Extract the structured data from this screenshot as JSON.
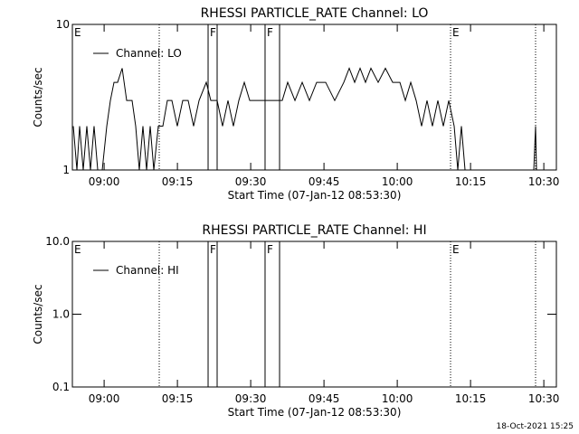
{
  "chart_data": [
    {
      "type": "line",
      "title": "RHESSI PARTICLE_RATE Channel: LO",
      "xlabel": "Start Time (07-Jan-12 08:53:30)",
      "ylabel": "Counts/sec",
      "log_y": true,
      "legend": "upper left",
      "xlim": [
        533.5,
        632.57
      ],
      "xticks": [
        {
          "value": 540,
          "label": "09:00"
        },
        {
          "value": 555,
          "label": "09:15"
        },
        {
          "value": 570,
          "label": "09:30"
        },
        {
          "value": 585,
          "label": "09:45"
        },
        {
          "value": 600,
          "label": "10:00"
        },
        {
          "value": 615,
          "label": "10:15"
        },
        {
          "value": 630,
          "label": "10:30"
        }
      ],
      "ylim": [
        1,
        10
      ],
      "yticks": [
        1,
        10
      ],
      "vlines": [
        {
          "x": 551.28,
          "style": "dotted"
        },
        {
          "x": 561.28,
          "style": "solid"
        },
        {
          "x": 563.13,
          "style": "solid"
        },
        {
          "x": 572.94,
          "style": "solid"
        },
        {
          "x": 575.91,
          "style": "solid"
        },
        {
          "x": 610.91,
          "style": "dotted"
        },
        {
          "x": 628.31,
          "style": "dotted"
        }
      ],
      "annotations": [
        {
          "label": "E",
          "x": 533.5
        },
        {
          "label": "F",
          "x": 561.28
        },
        {
          "label": "F",
          "x": 572.94
        },
        {
          "label": "E",
          "x": 610.91
        }
      ],
      "series": [
        {
          "name": "Channel: LO",
          "color": "#000000",
          "x": [
            533.69,
            534.43,
            534.98,
            535.72,
            536.46,
            537.2,
            537.94,
            538.69,
            539.61,
            540.54,
            541.28,
            542.02,
            542.76,
            543.69,
            544.61,
            545.72,
            546.46,
            547.2,
            547.94,
            548.69,
            549.43,
            550.17,
            551.09,
            552.02,
            552.94,
            553.87,
            554.98,
            556.09,
            557.2,
            558.31,
            559.43,
            560.91,
            561.83,
            563.13,
            564.24,
            565.35,
            566.46,
            567.57,
            568.69,
            569.8,
            572.39,
            575.17,
            576.46,
            577.57,
            579.06,
            580.54,
            582.02,
            583.5,
            585.35,
            587.2,
            589.06,
            590.17,
            591.28,
            592.39,
            593.5,
            594.61,
            596.09,
            597.57,
            599.06,
            600.54,
            601.65,
            602.76,
            603.87,
            604.98,
            606.09,
            607.2,
            608.31,
            609.43,
            610.54,
            611.65,
            612.39,
            613.13,
            613.87,
            614.61,
            620,
            627.94,
            628.31,
            628.5
          ],
          "values": [
            2,
            1,
            2,
            1,
            2,
            1,
            2,
            1,
            1,
            2,
            3,
            4,
            4,
            5,
            3,
            3,
            2,
            1,
            2,
            1,
            2,
            1,
            2,
            2,
            3,
            3,
            2,
            3,
            3,
            2,
            3,
            4,
            3,
            3,
            2,
            3,
            2,
            3,
            4,
            3,
            3,
            3,
            3,
            4,
            3,
            4,
            3,
            4,
            4,
            3,
            4,
            5,
            4,
            5,
            4,
            5,
            4,
            5,
            4,
            4,
            3,
            4,
            3,
            2,
            3,
            2,
            3,
            2,
            3,
            2,
            1,
            2,
            1,
            1,
            null,
            1,
            2,
            1
          ]
        }
      ]
    },
    {
      "type": "line",
      "title": "RHESSI PARTICLE_RATE Channel: HI",
      "xlabel": "Start Time (07-Jan-12 08:53:30)",
      "ylabel": "Counts/sec",
      "log_y": true,
      "legend": "upper left",
      "xlim": [
        533.5,
        632.57
      ],
      "xticks": [
        {
          "value": 540,
          "label": "09:00"
        },
        {
          "value": 555,
          "label": "09:15"
        },
        {
          "value": 570,
          "label": "09:30"
        },
        {
          "value": 585,
          "label": "09:45"
        },
        {
          "value": 600,
          "label": "10:00"
        },
        {
          "value": 615,
          "label": "10:15"
        },
        {
          "value": 630,
          "label": "10:30"
        }
      ],
      "ylim": [
        0.1,
        10
      ],
      "yticks": [
        0.1,
        {
          "value": 1,
          "label": "1.0"
        },
        {
          "value": 10,
          "label": "10.0"
        }
      ],
      "vlines": [
        {
          "x": 551.28,
          "style": "dotted"
        },
        {
          "x": 561.28,
          "style": "solid"
        },
        {
          "x": 563.13,
          "style": "solid"
        },
        {
          "x": 572.94,
          "style": "solid"
        },
        {
          "x": 575.91,
          "style": "solid"
        },
        {
          "x": 610.91,
          "style": "dotted"
        },
        {
          "x": 628.31,
          "style": "dotted"
        }
      ],
      "annotations": [
        {
          "label": "E",
          "x": 533.5
        },
        {
          "label": "F",
          "x": 561.28
        },
        {
          "label": "F",
          "x": 572.94
        },
        {
          "label": "E",
          "x": 610.91
        }
      ],
      "series": [
        {
          "name": "Channel: HI",
          "color": "#000000",
          "x": [],
          "values": []
        }
      ]
    }
  ],
  "timestamp": "18-Oct-2021 15:25"
}
